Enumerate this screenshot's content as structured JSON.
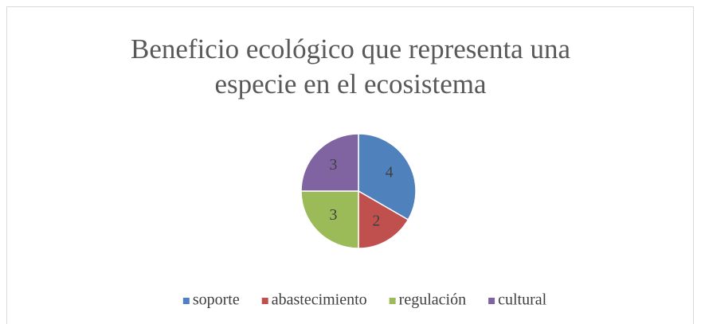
{
  "chart_data": {
    "type": "pie",
    "title": "Beneficio ecológico que representa una especie en el ecosistema",
    "categories": [
      "soporte",
      "abastecimiento",
      "regulación",
      "cultural"
    ],
    "values": [
      4,
      2,
      3,
      3
    ],
    "colors": [
      "#4f81bd",
      "#c0504d",
      "#9bbb59",
      "#8064a2"
    ],
    "legend": "bottom"
  }
}
